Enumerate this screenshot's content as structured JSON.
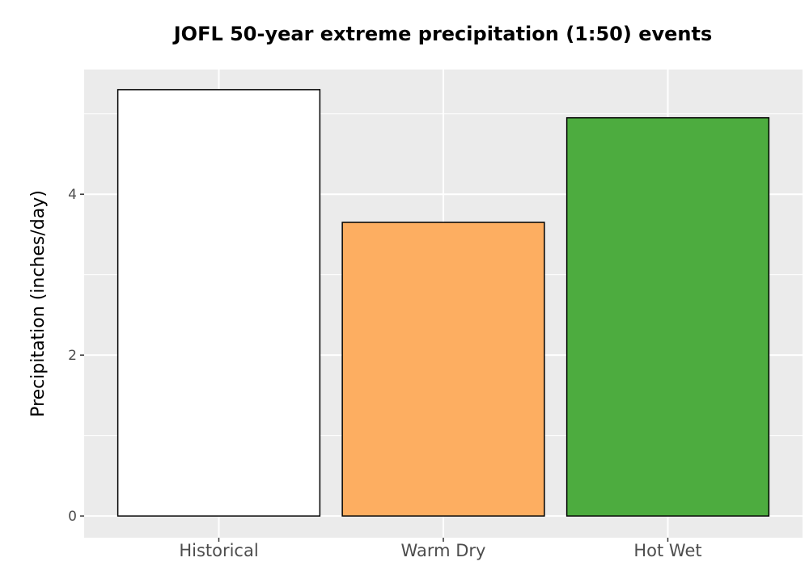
{
  "chart_data": {
    "type": "bar",
    "title": "JOFL 50-year extreme precipitation (1:50) events",
    "xlabel": "",
    "ylabel": "Precipitation (inches/day)",
    "categories": [
      "Historical",
      "Warm Dry",
      "Hot Wet"
    ],
    "values": [
      5.3,
      3.65,
      4.95
    ],
    "colors": [
      "#ffffff",
      "#fdae61",
      "#4dac3f"
    ],
    "ylim": [
      -0.27,
      5.55
    ],
    "yticks": [
      0,
      2,
      4
    ],
    "ytick_labels": [
      "0",
      "2",
      "4"
    ],
    "grid": true,
    "background": "#ebebeb"
  }
}
